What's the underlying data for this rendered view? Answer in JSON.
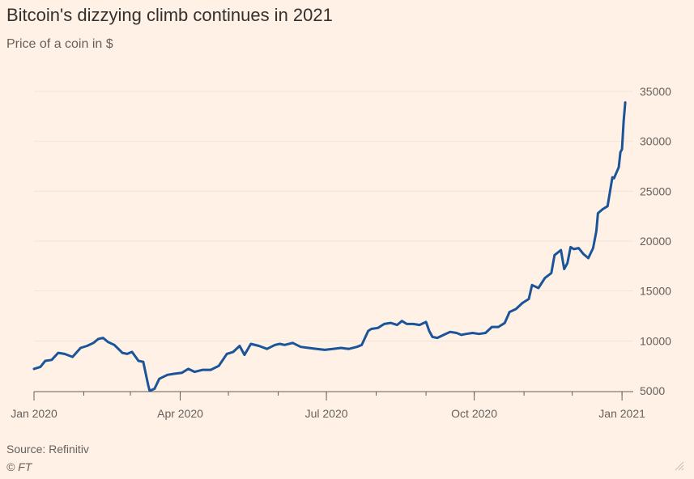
{
  "header": {
    "title": "Bitcoin's dizzying climb continues in 2021",
    "subtitle": "Price of a coin in $"
  },
  "footer": {
    "source": "Source: Refinitiv",
    "copyright": "© FT"
  },
  "colors": {
    "background": "#FFF1E5",
    "line": "#1A5499",
    "gridline": "#EFE4DA",
    "axis": "#66605C"
  },
  "icons": {
    "corner": "resize-grip-icon"
  },
  "chart_data": {
    "type": "line",
    "title": "Bitcoin's dizzying climb continues in 2021",
    "subtitle": "Price of a coin in $",
    "xlabel": "",
    "ylabel": "",
    "xlim": [
      "2020-01-01",
      "2021-01-08"
    ],
    "ylim": [
      5000,
      35000
    ],
    "yticks": [
      5000,
      10000,
      15000,
      20000,
      25000,
      30000,
      35000
    ],
    "ytick_labels": [
      "5000",
      "10000",
      "15000",
      "20000",
      "25000",
      "30000",
      "35000"
    ],
    "xticks": [
      "2020-01-01",
      "2020-04-01",
      "2020-07-01",
      "2020-10-01",
      "2021-01-01"
    ],
    "xtick_labels": [
      "Jan 2020",
      "Apr 2020",
      "Jul 2020",
      "Oct 2020",
      "Jan 2021"
    ],
    "grid": true,
    "legend": "none",
    "series": [
      {
        "name": "",
        "x": [
          "2020-01-01",
          "2020-01-05",
          "2020-01-08",
          "2020-01-12",
          "2020-01-16",
          "2020-01-20",
          "2020-01-25",
          "2020-01-30",
          "2020-02-03",
          "2020-02-07",
          "2020-02-10",
          "2020-02-13",
          "2020-02-16",
          "2020-02-20",
          "2020-02-25",
          "2020-02-28",
          "2020-03-02",
          "2020-03-06",
          "2020-03-09",
          "2020-03-12",
          "2020-03-13",
          "2020-03-16",
          "2020-03-19",
          "2020-03-24",
          "2020-03-28",
          "2020-04-02",
          "2020-04-06",
          "2020-04-10",
          "2020-04-15",
          "2020-04-20",
          "2020-04-25",
          "2020-04-30",
          "2020-05-04",
          "2020-05-08",
          "2020-05-11",
          "2020-05-15",
          "2020-05-20",
          "2020-05-25",
          "2020-05-30",
          "2020-06-02",
          "2020-06-05",
          "2020-06-10",
          "2020-06-15",
          "2020-06-20",
          "2020-06-25",
          "2020-06-30",
          "2020-07-05",
          "2020-07-10",
          "2020-07-15",
          "2020-07-20",
          "2020-07-23",
          "2020-07-27",
          "2020-07-29",
          "2020-08-02",
          "2020-08-06",
          "2020-08-10",
          "2020-08-14",
          "2020-08-17",
          "2020-08-20",
          "2020-08-24",
          "2020-08-28",
          "2020-09-01",
          "2020-09-03",
          "2020-09-05",
          "2020-09-08",
          "2020-09-12",
          "2020-09-16",
          "2020-09-20",
          "2020-09-23",
          "2020-09-26",
          "2020-09-30",
          "2020-10-04",
          "2020-10-08",
          "2020-10-12",
          "2020-10-16",
          "2020-10-20",
          "2020-10-23",
          "2020-10-27",
          "2020-10-31",
          "2020-11-04",
          "2020-11-06",
          "2020-11-10",
          "2020-11-14",
          "2020-11-18",
          "2020-11-20",
          "2020-11-24",
          "2020-11-26",
          "2020-11-28",
          "2020-11-30",
          "2020-12-02",
          "2020-12-05",
          "2020-12-08",
          "2020-12-11",
          "2020-12-14",
          "2020-12-16",
          "2020-12-17",
          "2020-12-20",
          "2020-12-23",
          "2020-12-26",
          "2020-12-27",
          "2020-12-30",
          "2020-12-31",
          "2021-01-01",
          "2021-01-02",
          "2021-01-03"
        ],
        "values": [
          7200,
          7400,
          8000,
          8100,
          8800,
          8700,
          8400,
          9300,
          9500,
          9800,
          10200,
          10300,
          9900,
          9600,
          8800,
          8700,
          8900,
          8000,
          7900,
          5600,
          5000,
          5200,
          6200,
          6600,
          6700,
          6800,
          7200,
          6900,
          7100,
          7100,
          7500,
          8700,
          8900,
          9500,
          8600,
          9700,
          9500,
          9200,
          9600,
          9700,
          9600,
          9800,
          9400,
          9300,
          9200,
          9100,
          9200,
          9300,
          9200,
          9400,
          9600,
          11000,
          11200,
          11300,
          11700,
          11800,
          11600,
          12000,
          11700,
          11700,
          11600,
          11900,
          11000,
          10400,
          10300,
          10600,
          10900,
          10800,
          10600,
          10700,
          10800,
          10700,
          10800,
          11400,
          11400,
          11800,
          12900,
          13200,
          13800,
          14200,
          15600,
          15300,
          16300,
          16800,
          18600,
          19100,
          17200,
          17800,
          19400,
          19200,
          19300,
          18700,
          18300,
          19300,
          21000,
          22800,
          23200,
          23500,
          26400,
          26300,
          27400,
          28900,
          29200,
          32000,
          33900
        ]
      }
    ]
  }
}
